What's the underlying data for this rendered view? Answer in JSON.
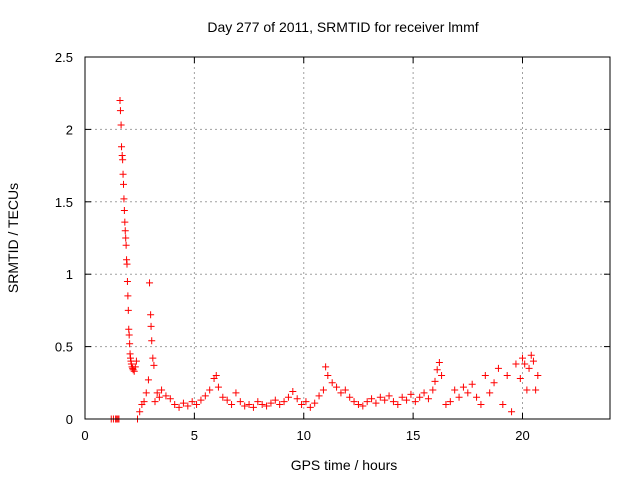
{
  "chart_data": {
    "type": "scatter",
    "title": "Day 277 of 2011, SRMTID for receiver lmmf",
    "xlabel": "GPS time / hours",
    "ylabel": "SRMTID / TECUs",
    "xlim": [
      0,
      24
    ],
    "ylim": [
      0,
      2.5
    ],
    "xticks": [
      0,
      5,
      10,
      15,
      20
    ],
    "xtick_labels": [
      "0",
      "5",
      "10",
      "15",
      "20"
    ],
    "yticks": [
      0,
      0.5,
      1,
      1.5,
      2,
      2.5
    ],
    "ytick_labels": [
      "0",
      "0.5",
      "1",
      "1.5",
      "2",
      "2.5"
    ],
    "grid": true,
    "legend": "none",
    "marker": "plus",
    "series_color": "#ff0000",
    "series": [
      {
        "x": [
          1.2,
          1.3,
          1.4,
          1.45,
          1.5,
          1.55,
          1.6,
          1.62,
          1.65,
          1.67,
          1.7,
          1.72,
          1.74,
          1.76,
          1.78,
          1.8,
          1.82,
          1.84,
          1.86,
          1.88,
          1.9,
          1.92,
          1.94,
          1.96,
          1.98,
          2.0,
          2.02,
          2.04,
          2.06,
          2.08,
          2.1,
          2.12,
          2.15,
          2.18,
          2.2,
          2.25,
          2.3,
          2.35,
          2.4,
          2.5,
          2.6,
          2.7,
          2.8,
          2.9,
          2.95,
          3.0,
          3.02,
          3.05,
          3.1,
          3.15,
          3.2,
          3.3,
          3.4,
          3.5,
          3.7,
          3.9,
          4.1,
          4.3,
          4.5,
          4.7,
          4.9,
          5.1,
          5.3,
          5.5,
          5.7,
          5.9,
          6.0,
          6.1,
          6.3,
          6.5,
          6.7,
          6.9,
          7.1,
          7.3,
          7.5,
          7.7,
          7.9,
          8.1,
          8.3,
          8.5,
          8.7,
          8.9,
          9.1,
          9.3,
          9.5,
          9.7,
          9.9,
          10.1,
          10.3,
          10.5,
          10.7,
          10.9,
          11.0,
          11.1,
          11.3,
          11.5,
          11.7,
          11.9,
          12.1,
          12.3,
          12.5,
          12.7,
          12.9,
          13.1,
          13.3,
          13.5,
          13.7,
          13.9,
          14.1,
          14.3,
          14.5,
          14.7,
          14.9,
          15.1,
          15.3,
          15.5,
          15.7,
          15.9,
          16.0,
          16.1,
          16.2,
          16.3,
          16.5,
          16.7,
          16.9,
          17.1,
          17.3,
          17.5,
          17.7,
          17.9,
          18.1,
          18.3,
          18.5,
          18.7,
          18.9,
          19.1,
          19.3,
          19.5,
          19.7,
          19.9,
          20.0,
          20.1,
          20.2,
          20.3,
          20.4,
          20.5,
          20.6,
          20.7
        ],
        "y": [
          0.0,
          0.0,
          0.0,
          0.0,
          0.0,
          0.0,
          2.2,
          2.13,
          2.03,
          1.88,
          1.82,
          1.79,
          1.69,
          1.62,
          1.52,
          1.44,
          1.36,
          1.3,
          1.25,
          1.2,
          1.1,
          1.07,
          0.95,
          0.85,
          0.75,
          0.62,
          0.58,
          0.52,
          0.45,
          0.42,
          0.4,
          0.38,
          0.36,
          0.35,
          0.34,
          0.33,
          0.36,
          0.4,
          0.0,
          0.05,
          0.1,
          0.12,
          0.18,
          0.27,
          0.94,
          0.72,
          0.64,
          0.54,
          0.42,
          0.37,
          0.12,
          0.18,
          0.15,
          0.2,
          0.16,
          0.14,
          0.1,
          0.08,
          0.11,
          0.09,
          0.12,
          0.1,
          0.13,
          0.16,
          0.2,
          0.28,
          0.3,
          0.22,
          0.15,
          0.13,
          0.1,
          0.18,
          0.12,
          0.09,
          0.1,
          0.08,
          0.12,
          0.1,
          0.09,
          0.11,
          0.13,
          0.1,
          0.12,
          0.15,
          0.19,
          0.14,
          0.1,
          0.12,
          0.08,
          0.11,
          0.16,
          0.2,
          0.36,
          0.3,
          0.25,
          0.22,
          0.18,
          0.2,
          0.15,
          0.12,
          0.1,
          0.09,
          0.12,
          0.14,
          0.11,
          0.15,
          0.13,
          0.16,
          0.12,
          0.1,
          0.15,
          0.13,
          0.17,
          0.12,
          0.15,
          0.18,
          0.14,
          0.2,
          0.26,
          0.34,
          0.39,
          0.3,
          0.1,
          0.12,
          0.2,
          0.15,
          0.22,
          0.18,
          0.24,
          0.15,
          0.1,
          0.3,
          0.18,
          0.25,
          0.35,
          0.1,
          0.3,
          0.05,
          0.38,
          0.28,
          0.42,
          0.38,
          0.2,
          0.35,
          0.44,
          0.4,
          0.2,
          0.3
        ]
      }
    ]
  }
}
